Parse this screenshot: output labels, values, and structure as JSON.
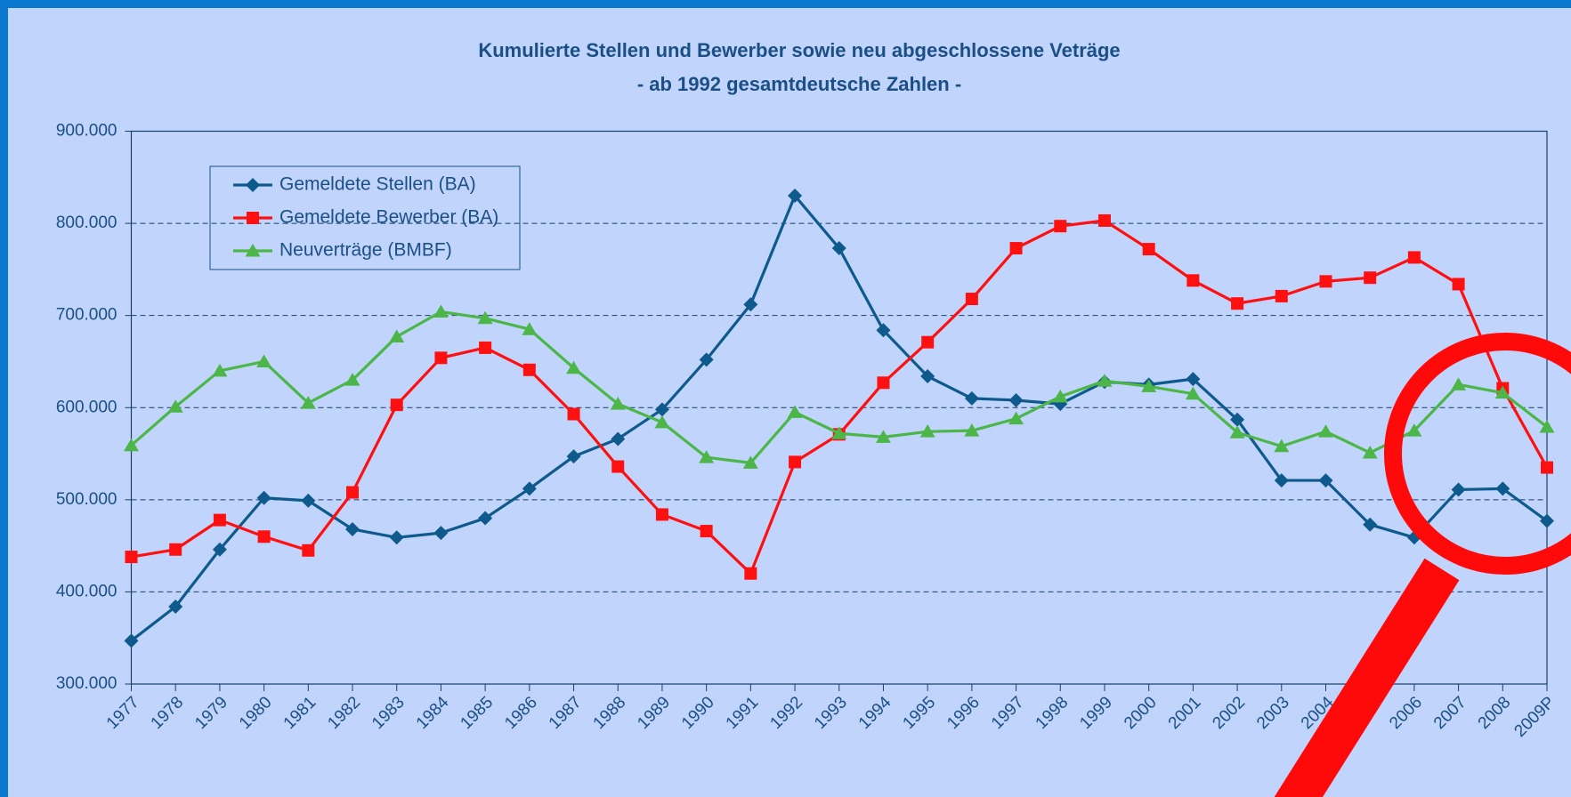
{
  "chart_data": {
    "type": "line",
    "title": "Kumulierte Stellen und Bewerber sowie neu abgeschlossene Veträge",
    "subtitle": "- ab 1992 gesamtdeutsche Zahlen -",
    "categories": [
      "1977",
      "1978",
      "1979",
      "1980",
      "1981",
      "1982",
      "1983",
      "1984",
      "1985",
      "1986",
      "1987",
      "1988",
      "1989",
      "1990",
      "1991",
      "1992",
      "1993",
      "1994",
      "1995",
      "1996",
      "1997",
      "1998",
      "1999",
      "2000",
      "2001",
      "2002",
      "2003",
      "2004",
      null,
      "2006",
      "2007",
      "2008",
      "2009P"
    ],
    "series": [
      {
        "name": "Gemeldete Stellen (BA)",
        "color": "#0f5a8c",
        "marker": "diamond",
        "values": [
          347000,
          384000,
          446000,
          502000,
          499000,
          468000,
          459000,
          464000,
          480000,
          512000,
          547000,
          566000,
          598000,
          652000,
          712000,
          830000,
          773000,
          684000,
          634000,
          610000,
          608000,
          604000,
          628000,
          625000,
          631000,
          587000,
          521000,
          521000,
          473000,
          459000,
          511000,
          512000,
          477000
        ]
      },
      {
        "name": "Gemeldete Bewerber (BA)",
        "color": "#ff1010",
        "marker": "square",
        "values": [
          438000,
          446000,
          478000,
          460000,
          445000,
          508000,
          603000,
          654000,
          665000,
          641000,
          593000,
          536000,
          484000,
          466000,
          420000,
          541000,
          571000,
          627000,
          671000,
          718000,
          773000,
          797000,
          803000,
          772000,
          738000,
          713000,
          721000,
          737000,
          741000,
          763000,
          734000,
          621000,
          535000
        ]
      },
      {
        "name": "Neuverträge (BMBF)",
        "color": "#4cb648",
        "marker": "triangle",
        "values": [
          559000,
          601000,
          640000,
          650000,
          605000,
          630000,
          677000,
          704000,
          697000,
          685000,
          643000,
          604000,
          584000,
          546000,
          540000,
          595000,
          572000,
          568000,
          574000,
          575000,
          588000,
          612000,
          629000,
          623000,
          615000,
          573000,
          558000,
          574000,
          551000,
          575000,
          625000,
          616000,
          579000
        ]
      }
    ],
    "ylim": [
      300000,
      900000
    ],
    "yticks": [
      {
        "value": 300000,
        "label": "300.000"
      },
      {
        "value": 400000,
        "label": "400.000"
      },
      {
        "value": 500000,
        "label": "500.000"
      },
      {
        "value": 600000,
        "label": "600.000"
      },
      {
        "value": 700000,
        "label": "700.000"
      },
      {
        "value": 800000,
        "label": "800.000"
      },
      {
        "value": 900000,
        "label": "900.000"
      }
    ],
    "grid": true,
    "legend": "upper left"
  }
}
